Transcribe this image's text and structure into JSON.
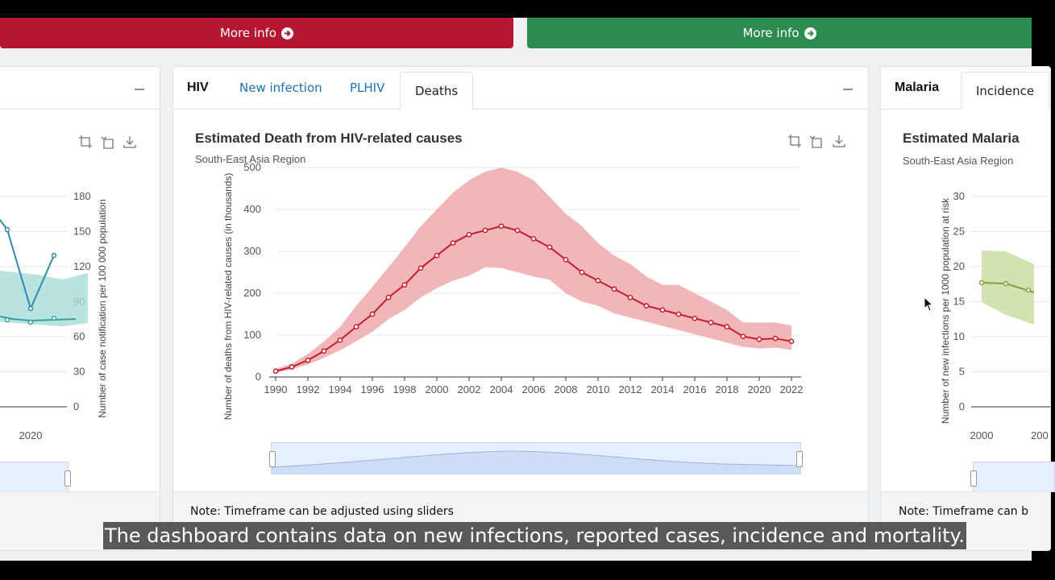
{
  "top_buttons": [
    {
      "label": "More info",
      "color": "#b51732"
    },
    {
      "label": "More info",
      "color": "#2e8b4f"
    }
  ],
  "tb_card": {
    "yaxis_label": "Number of case notification per 100 000 population",
    "yticks": [
      "0",
      "30",
      "60",
      "90",
      "120",
      "150",
      "180"
    ],
    "xtick": "2020"
  },
  "hiv_card": {
    "title": "HIV",
    "tabs": [
      "New infection",
      "PLHIV",
      "Deaths"
    ],
    "active_tab": "Deaths",
    "note": "Note: Timeframe can be adjusted using sliders"
  },
  "malaria_card": {
    "title": "Malaria",
    "tab": "Incidence",
    "chart_title": "Estimated Malaria",
    "subtitle": "South-East Asia Region",
    "yaxis_label": "Number of new infections per 1000 population at risk",
    "yticks": [
      "0",
      "5",
      "10",
      "15",
      "20",
      "25",
      "30"
    ],
    "xticks": [
      "2000",
      "200"
    ],
    "note": "Note: Timeframe can b"
  },
  "caption": "The dashboard contains data on new infections, reported cases, incidence and mortality.",
  "chart_data": {
    "type": "line",
    "title": "Estimated Death from HIV-related causes",
    "subtitle": "South-East Asia Region",
    "xlabel": "",
    "ylabel": "Number of deaths from HIV-related causes (in thousands)",
    "ylim": [
      0,
      500
    ],
    "xlim": [
      1990,
      2022
    ],
    "yticks": [
      0,
      100,
      200,
      300,
      400,
      500
    ],
    "xticks": [
      1990,
      1992,
      1994,
      1996,
      1998,
      2000,
      2002,
      2004,
      2006,
      2008,
      2010,
      2012,
      2014,
      2016,
      2018,
      2020,
      2022
    ],
    "grid": true,
    "line_color": "#c41e2e",
    "band_color": "#eea9ad",
    "x": [
      1990,
      1991,
      1992,
      1993,
      1994,
      1995,
      1996,
      1997,
      1998,
      1999,
      2000,
      2001,
      2002,
      2003,
      2004,
      2005,
      2006,
      2007,
      2008,
      2009,
      2010,
      2011,
      2012,
      2013,
      2014,
      2015,
      2016,
      2017,
      2018,
      2019,
      2020,
      2021,
      2022
    ],
    "y": [
      14,
      24,
      40,
      62,
      88,
      120,
      150,
      190,
      220,
      260,
      290,
      320,
      340,
      350,
      360,
      350,
      330,
      310,
      280,
      250,
      230,
      210,
      190,
      170,
      160,
      150,
      140,
      130,
      120,
      97,
      90,
      92,
      85
    ],
    "lower": [
      10,
      18,
      30,
      46,
      64,
      85,
      108,
      138,
      160,
      190,
      212,
      230,
      242,
      262,
      260,
      250,
      240,
      232,
      200,
      180,
      170,
      152,
      142,
      132,
      122,
      112,
      102,
      92,
      82,
      72,
      68,
      70,
      65
    ],
    "upper": [
      20,
      32,
      55,
      85,
      120,
      170,
      215,
      262,
      310,
      360,
      400,
      440,
      470,
      490,
      500,
      490,
      470,
      430,
      390,
      360,
      320,
      290,
      270,
      240,
      220,
      220,
      200,
      180,
      160,
      130,
      130,
      130,
      123
    ]
  }
}
